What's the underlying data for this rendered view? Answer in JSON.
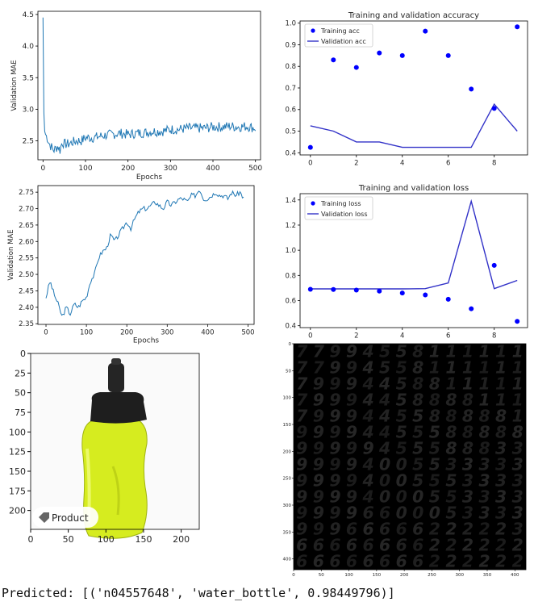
{
  "chart_data": [
    {
      "type": "line",
      "xlabel": "Epochs",
      "ylabel": "Validation MAE",
      "xlim": [
        -12,
        512
      ],
      "ylim": [
        2.2,
        4.55
      ],
      "xticks": [
        "0",
        "100",
        "200",
        "300",
        "400",
        "500"
      ],
      "yticks": [
        "2.5",
        "3.0",
        "3.5",
        "4.0",
        "4.5"
      ],
      "color": "#1f77b4",
      "series": [
        {
          "x": [
            0,
            2,
            4,
            6,
            10,
            15,
            20,
            25,
            30,
            35,
            40,
            45,
            50,
            60,
            70,
            80,
            90,
            100,
            120,
            140,
            160,
            180,
            200,
            220,
            240,
            260,
            280,
            300,
            320,
            340,
            360,
            380,
            400,
            420,
            440,
            460,
            480,
            500
          ],
          "values": [
            4.45,
            2.95,
            2.65,
            2.6,
            2.55,
            2.45,
            2.4,
            2.35,
            2.38,
            2.42,
            2.35,
            2.48,
            2.45,
            2.45,
            2.48,
            2.5,
            2.5,
            2.55,
            2.55,
            2.58,
            2.6,
            2.62,
            2.6,
            2.62,
            2.63,
            2.65,
            2.65,
            2.68,
            2.68,
            2.7,
            2.7,
            2.7,
            2.72,
            2.72,
            2.73,
            2.72,
            2.73,
            2.7
          ]
        }
      ]
    },
    {
      "type": "scatter",
      "title": "Training and validation accuracy",
      "xlim": [
        -0.45,
        9.45
      ],
      "ylim": [
        0.39,
        1.01
      ],
      "xticks": [
        "0",
        "2",
        "4",
        "6",
        "8"
      ],
      "yticks": [
        "0.4",
        "0.5",
        "0.6",
        "0.7",
        "0.8",
        "0.9",
        "1.0"
      ],
      "legend": "top-left",
      "series": [
        {
          "name": "Training acc",
          "style": "dots",
          "color": "#0000ff",
          "x": [
            0,
            1,
            2,
            3,
            4,
            5,
            6,
            7,
            8,
            9
          ],
          "values": [
            0.425,
            0.83,
            0.795,
            0.862,
            0.85,
            0.963,
            0.85,
            0.695,
            0.605,
            0.983
          ]
        },
        {
          "name": "Validation acc",
          "style": "line",
          "color": "#3232c8",
          "x": [
            0,
            1,
            2,
            3,
            4,
            5,
            6,
            7,
            8,
            9
          ],
          "values": [
            0.525,
            0.5,
            0.45,
            0.45,
            0.425,
            0.425,
            0.425,
            0.425,
            0.625,
            0.5
          ]
        }
      ]
    },
    {
      "type": "line",
      "xlabel": "Epochs",
      "ylabel": "Validation MAE",
      "xlim": [
        -20,
        515
      ],
      "ylim": [
        2.348,
        2.77
      ],
      "xticks": [
        "0",
        "100",
        "200",
        "300",
        "400",
        "500"
      ],
      "yticks": [
        "2.35",
        "2.40",
        "2.45",
        "2.50",
        "2.55",
        "2.60",
        "2.65",
        "2.70",
        "2.75"
      ],
      "color": "#1f77b4",
      "series": [
        {
          "x": [
            0,
            10,
            20,
            30,
            40,
            50,
            60,
            70,
            80,
            90,
            100,
            110,
            120,
            130,
            140,
            150,
            160,
            170,
            180,
            190,
            200,
            210,
            220,
            230,
            240,
            250,
            260,
            270,
            280,
            290,
            300,
            310,
            320,
            330,
            340,
            350,
            360,
            370,
            380,
            390,
            400,
            410,
            420,
            430,
            440,
            450,
            460,
            470,
            480,
            490
          ],
          "values": [
            2.43,
            2.48,
            2.44,
            2.41,
            2.37,
            2.4,
            2.38,
            2.41,
            2.4,
            2.42,
            2.43,
            2.48,
            2.5,
            2.55,
            2.57,
            2.58,
            2.62,
            2.6,
            2.62,
            2.64,
            2.66,
            2.64,
            2.67,
            2.69,
            2.7,
            2.7,
            2.71,
            2.72,
            2.71,
            2.7,
            2.72,
            2.71,
            2.72,
            2.73,
            2.73,
            2.72,
            2.74,
            2.74,
            2.76,
            2.73,
            2.73,
            2.74,
            2.75,
            2.74,
            2.74,
            2.73,
            2.75,
            2.74,
            2.75,
            2.73
          ]
        }
      ]
    },
    {
      "type": "scatter",
      "title": "Training and validation loss",
      "xlim": [
        -0.45,
        9.45
      ],
      "ylim": [
        0.385,
        1.45
      ],
      "xticks": [
        "0",
        "2",
        "4",
        "6",
        "8"
      ],
      "yticks": [
        "0.4",
        "0.6",
        "0.8",
        "1.0",
        "1.2",
        "1.4"
      ],
      "legend": "top-left",
      "series": [
        {
          "name": "Training loss",
          "style": "dots",
          "color": "#0000ff",
          "x": [
            0,
            1,
            2,
            3,
            4,
            5,
            6,
            7,
            8,
            9
          ],
          "values": [
            0.69,
            0.688,
            0.683,
            0.675,
            0.66,
            0.645,
            0.61,
            0.535,
            0.88,
            0.435
          ]
        },
        {
          "name": "Validation loss",
          "style": "line",
          "color": "#3232c8",
          "x": [
            0,
            1,
            2,
            3,
            4,
            5,
            6,
            7,
            8,
            9
          ],
          "values": [
            0.693,
            0.693,
            0.693,
            0.693,
            0.693,
            0.695,
            0.74,
            1.39,
            0.695,
            0.76
          ]
        }
      ]
    },
    {
      "type": "image",
      "xlim": [
        0,
        224
      ],
      "ylim": [
        224,
        0
      ],
      "xticks": [
        "0",
        "50",
        "100",
        "150",
        "200"
      ],
      "yticks": [
        "0",
        "25",
        "50",
        "75",
        "100",
        "125",
        "150",
        "175",
        "200"
      ],
      "label": "Product",
      "image": "bottle"
    },
    {
      "type": "image",
      "xlim": [
        0,
        420
      ],
      "ylim": [
        420,
        0
      ],
      "xticks": [
        "0",
        "50",
        "100",
        "150",
        "200",
        "250",
        "300",
        "350",
        "400"
      ],
      "yticks": [
        "0",
        "50",
        "100",
        "150",
        "200",
        "250",
        "300",
        "350",
        "400"
      ],
      "image": "digit-grid",
      "digits": [
        [
          "7",
          "7",
          "9",
          "9",
          "4",
          "5",
          "5",
          "8",
          "1",
          "1",
          "1",
          "1",
          "1",
          "1"
        ],
        [
          "7",
          "7",
          "9",
          "9",
          "4",
          "5",
          "5",
          "8",
          "1",
          "1",
          "1",
          "1",
          "1",
          "1"
        ],
        [
          "7",
          "9",
          "9",
          "9",
          "4",
          "4",
          "5",
          "8",
          "8",
          "1",
          "1",
          "1",
          "1",
          "1"
        ],
        [
          "7",
          "9",
          "9",
          "9",
          "4",
          "4",
          "5",
          "8",
          "8",
          "8",
          "8",
          "1",
          "1",
          "1"
        ],
        [
          "7",
          "9",
          "9",
          "9",
          "4",
          "4",
          "5",
          "5",
          "8",
          "8",
          "8",
          "8",
          "8",
          "1"
        ],
        [
          "9",
          "9",
          "9",
          "9",
          "4",
          "4",
          "5",
          "5",
          "5",
          "8",
          "8",
          "8",
          "8",
          "8"
        ],
        [
          "9",
          "9",
          "9",
          "9",
          "9",
          "4",
          "5",
          "5",
          "5",
          "8",
          "8",
          "8",
          "3",
          "3"
        ],
        [
          "9",
          "9",
          "9",
          "9",
          "4",
          "0",
          "0",
          "5",
          "5",
          "3",
          "3",
          "3",
          "3",
          "3"
        ],
        [
          "9",
          "9",
          "9",
          "9",
          "4",
          "0",
          "0",
          "5",
          "5",
          "5",
          "3",
          "3",
          "3",
          "3"
        ],
        [
          "9",
          "9",
          "9",
          "9",
          "4",
          "0",
          "0",
          "0",
          "5",
          "5",
          "3",
          "3",
          "3",
          "3"
        ],
        [
          "9",
          "9",
          "9",
          "9",
          "6",
          "6",
          "0",
          "0",
          "0",
          "5",
          "3",
          "3",
          "3",
          "3"
        ],
        [
          "9",
          "9",
          "9",
          "6",
          "6",
          "6",
          "6",
          "6",
          "2",
          "2",
          "2",
          "2",
          "2",
          "3"
        ],
        [
          "6",
          "6",
          "6",
          "6",
          "6",
          "6",
          "6",
          "6",
          "2",
          "2",
          "2",
          "2",
          "2",
          "2"
        ],
        [
          "6",
          "6",
          "6",
          "6",
          "6",
          "6",
          "6",
          "6",
          "2",
          "2",
          "2",
          "2",
          "2",
          "2"
        ]
      ]
    }
  ],
  "output": {
    "predicted": "Predicted: [('n04557648', 'water_bottle', 0.98449796)]"
  }
}
